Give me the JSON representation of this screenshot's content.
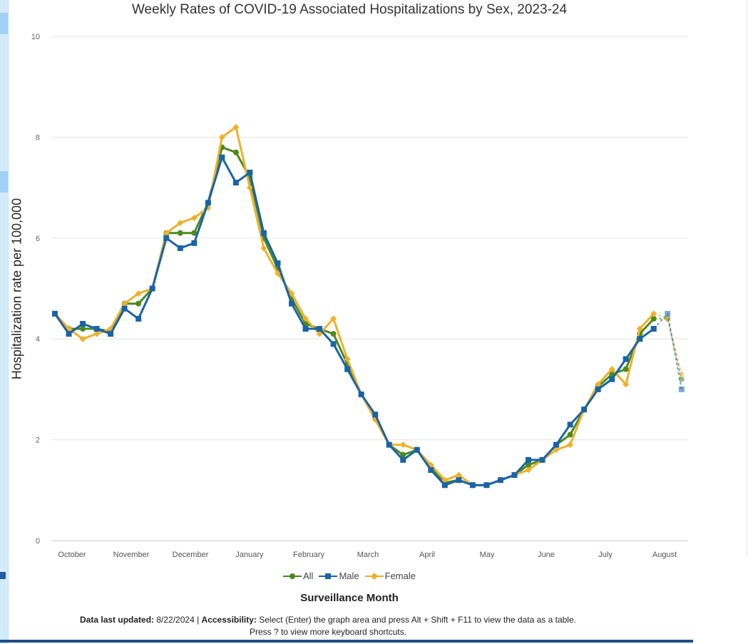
{
  "chart_data": {
    "type": "line",
    "title": "Weekly Rates of COVID-19 Associated Hospitalizations by Sex, 2023-24",
    "ylabel": "Hospitalization rate per 100,000",
    "xlabel": "Surveillance Month",
    "ylim": [
      0,
      10
    ],
    "y_ticks": [
      "0",
      "2",
      "4",
      "6",
      "8",
      "10"
    ],
    "month_labels": [
      "October",
      "November",
      "December",
      "January",
      "February",
      "March",
      "April",
      "May",
      "June",
      "July",
      "August"
    ],
    "grid": true,
    "legend_position": "bottom",
    "weeks": 46,
    "series": [
      {
        "name": "All",
        "color": "#4b8a1b",
        "marker": "circle",
        "values": [
          4.5,
          4.2,
          4.2,
          4.2,
          4.15,
          4.7,
          4.7,
          5.0,
          6.1,
          6.1,
          6.1,
          6.7,
          7.8,
          7.7,
          7.2,
          6.0,
          5.4,
          4.8,
          4.3,
          4.2,
          4.1,
          3.5,
          2.9,
          2.45,
          1.9,
          1.7,
          1.8,
          1.45,
          1.15,
          1.2,
          1.1,
          1.1,
          1.2,
          1.3,
          1.5,
          1.6,
          1.9,
          2.1,
          2.6,
          3.05,
          3.3,
          3.4,
          4.1,
          4.4,
          4.4,
          3.2
        ],
        "preliminary_from_index": 43
      },
      {
        "name": "Male",
        "color": "#1964a8",
        "marker": "square",
        "values": [
          4.5,
          4.1,
          4.3,
          4.2,
          4.1,
          4.6,
          4.4,
          5.0,
          6.0,
          5.8,
          5.9,
          6.7,
          7.6,
          7.1,
          7.3,
          6.1,
          5.5,
          4.7,
          4.2,
          4.2,
          3.9,
          3.4,
          2.9,
          2.5,
          1.9,
          1.6,
          1.8,
          1.4,
          1.1,
          1.2,
          1.1,
          1.1,
          1.2,
          1.3,
          1.6,
          1.6,
          1.9,
          2.3,
          2.6,
          3.0,
          3.2,
          3.6,
          4.0,
          4.2,
          4.5,
          3.0
        ],
        "preliminary_from_index": 43
      },
      {
        "name": "Female",
        "color": "#f0b02b",
        "marker": "diamond",
        "values": [
          4.5,
          4.2,
          4.0,
          4.1,
          4.2,
          4.7,
          4.9,
          5.0,
          6.1,
          6.3,
          6.4,
          6.6,
          8.0,
          8.2,
          7.0,
          5.8,
          5.3,
          4.9,
          4.4,
          4.1,
          4.4,
          3.6,
          2.9,
          2.4,
          1.9,
          1.9,
          1.8,
          1.5,
          1.2,
          1.3,
          1.1,
          1.1,
          1.2,
          1.3,
          1.4,
          1.6,
          1.8,
          1.9,
          2.6,
          3.1,
          3.4,
          3.1,
          4.2,
          4.5,
          4.4,
          3.3
        ],
        "preliminary_from_index": 43
      }
    ]
  },
  "footnote": {
    "updated_label": "Data last updated:",
    "updated_value": " 8/22/2024 | ",
    "accessibility_label": "Accessibility:",
    "accessibility_text": " Select (Enter) the graph area and press Alt + Shift + F11 to view the data as a table.",
    "line2": "Press ? to view more keyboard shortcuts."
  }
}
